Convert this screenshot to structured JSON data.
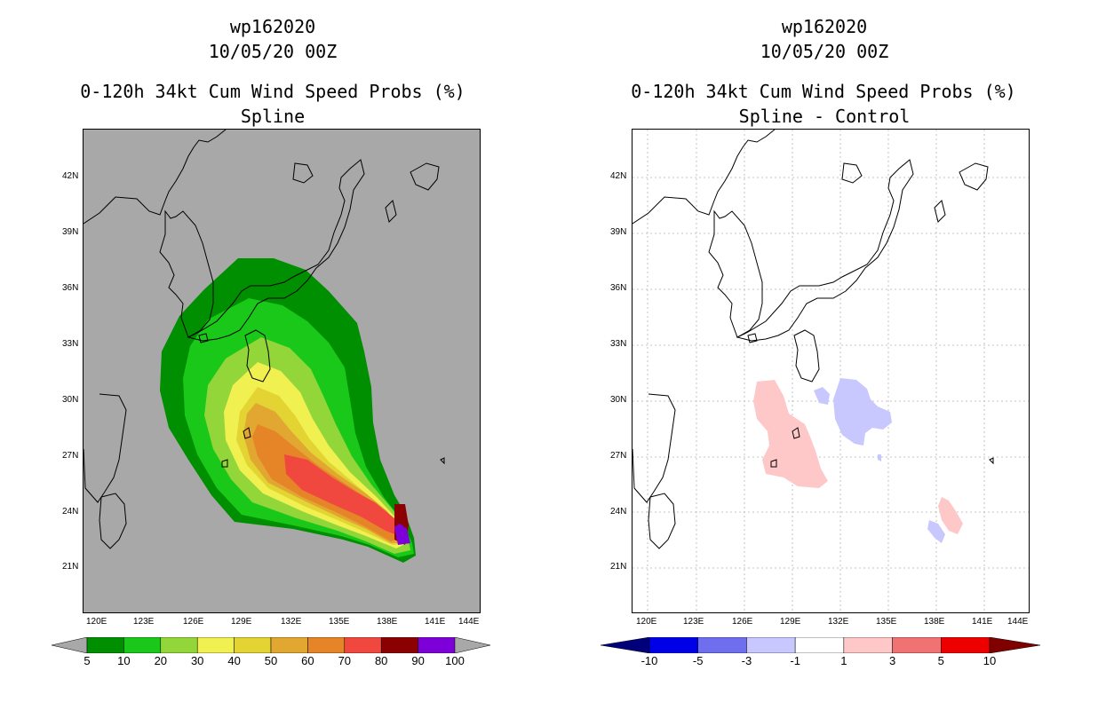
{
  "left": {
    "storm": "wp162020",
    "datetime": "10/05/20 00Z",
    "product": "0-120h 34kt Cum Wind Speed Probs (%)",
    "subtitle": "Spline",
    "background": "#a8a8a8"
  },
  "right": {
    "storm": "wp162020",
    "datetime": "10/05/20 00Z",
    "product": "0-120h 34kt Cum Wind Speed Probs (%)",
    "subtitle": "Spline - Control",
    "background": "#ffffff"
  },
  "axes": {
    "lon_labels": [
      "120E",
      "123E",
      "126E",
      "129E",
      "132E",
      "135E",
      "138E",
      "141E",
      "144E"
    ],
    "lat_labels": [
      "42N",
      "39N",
      "36N",
      "33N",
      "30N",
      "27N",
      "24N",
      "21N"
    ]
  },
  "left_colorbar": {
    "labels": [
      "5",
      "10",
      "20",
      "30",
      "40",
      "50",
      "60",
      "70",
      "80",
      "90",
      "100"
    ],
    "colors": [
      "#008f00",
      "#19c819",
      "#92d63a",
      "#f0f050",
      "#e3d333",
      "#e1a731",
      "#e58527",
      "#f0483e",
      "#8b0000",
      "#7e00d8"
    ],
    "under_color": "#a8a8a8",
    "over_color": "#a8a8a8"
  },
  "right_colorbar": {
    "labels": [
      "-10",
      "-5",
      "-3",
      "-1",
      "1",
      "3",
      "5",
      "10"
    ],
    "colors": [
      "#0000e8",
      "#6e6eef",
      "#c8c8ff",
      "#ffffff",
      "#ffc8c8",
      "#f07272",
      "#ee0000"
    ],
    "under_color": "#00007a",
    "over_color": "#800000"
  }
}
